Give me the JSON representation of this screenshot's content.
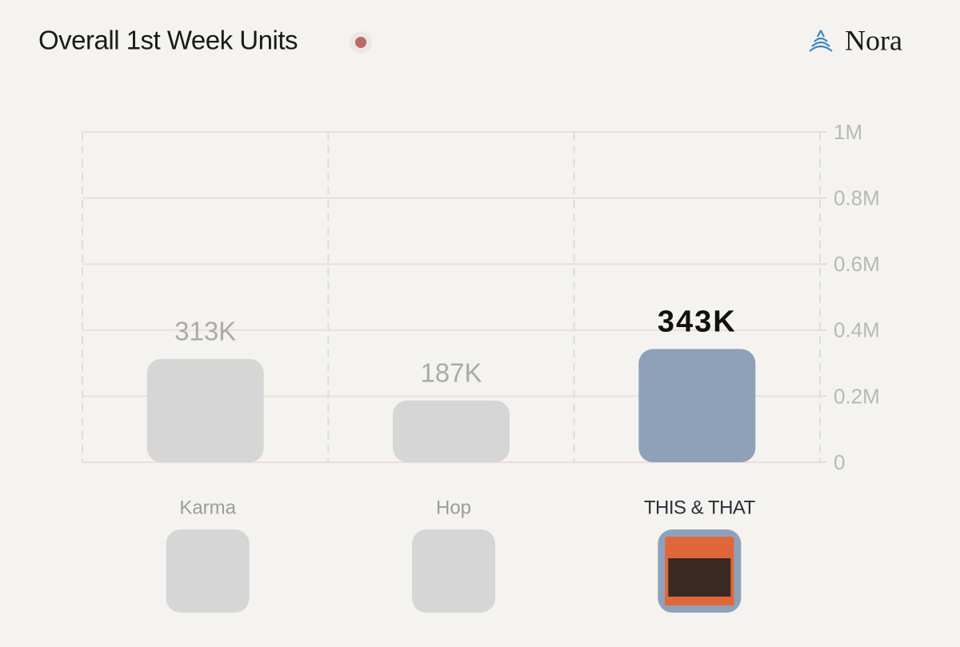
{
  "chart_data": {
    "type": "bar",
    "title": "Overall 1st Week Units",
    "brand": "Nora",
    "categories": [
      "Karma",
      "Hop",
      "THIS & THAT"
    ],
    "values": [
      313000,
      187000,
      343000
    ],
    "value_labels": [
      "313K",
      "187K",
      "343K"
    ],
    "colors": [
      "#d6d6d6",
      "#d6d6d6",
      "#8fa1b8"
    ],
    "highlight": 2,
    "ylim": [
      0,
      1000000
    ],
    "yticks": [
      0,
      {
        "value": 200000,
        "label": "0.2M"
      },
      {
        "value": 400000,
        "label": "0.4M"
      },
      {
        "value": 600000,
        "label": "0.6M"
      },
      {
        "value": 800000,
        "label": "0.8M"
      },
      {
        "value": 1000000,
        "label": "1M"
      }
    ],
    "grid": true
  }
}
